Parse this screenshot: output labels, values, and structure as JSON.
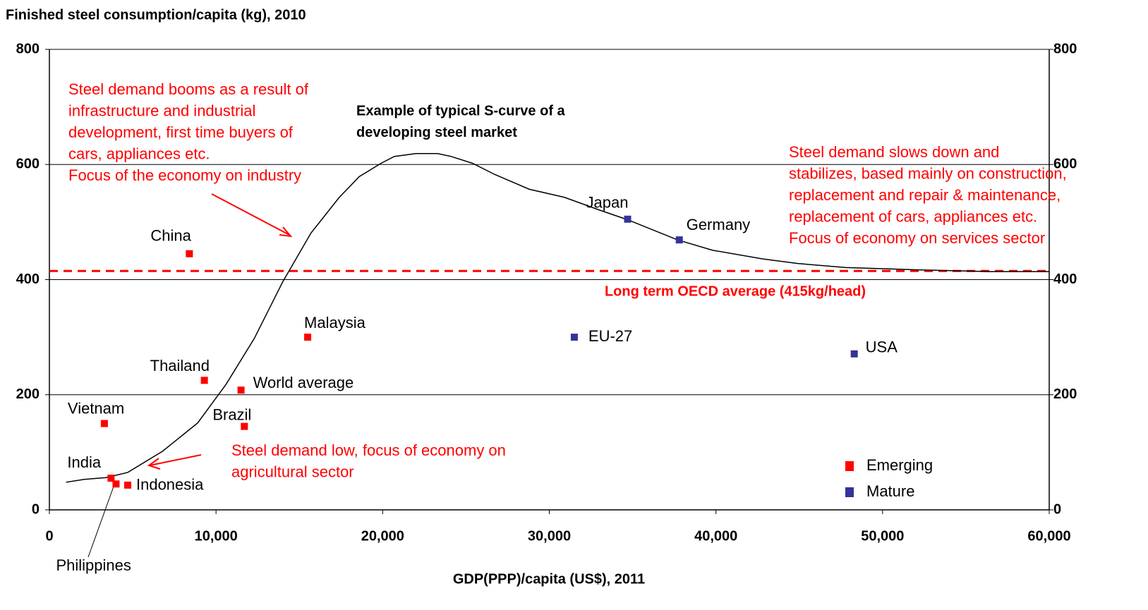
{
  "chart_data": {
    "type": "scatter",
    "title": "Finished steel consumption/capita (kg), 2010",
    "x_label": "GDP(PPP)/capita (US$), 2011",
    "xlim": [
      0,
      60000
    ],
    "xticks": [
      0,
      {
        "value": 10000,
        "label": "10,000"
      },
      {
        "value": 20000,
        "label": "20,000"
      },
      {
        "value": 30000,
        "label": "30,000"
      },
      {
        "value": 40000,
        "label": "40,000"
      },
      {
        "value": 50000,
        "label": "50,000"
      },
      {
        "value": 60000,
        "label": "60,000"
      }
    ],
    "ylim": [
      0,
      800
    ],
    "yticks": [
      0,
      200,
      400,
      600,
      800
    ],
    "y2lim": [
      0,
      800
    ],
    "y2ticks": [
      0,
      200,
      400,
      600,
      800
    ],
    "grid": true,
    "legend": "lower right",
    "series": [
      {
        "name": "Emerging",
        "color": "#ff0000",
        "labels": [
          "China",
          "Thailand",
          "World average",
          "Malaysia",
          "Vietnam",
          "Brazil",
          "India",
          "Philippines",
          "Indonesia"
        ],
        "x": [
          8400,
          9300,
          11500,
          15500,
          3300,
          11700,
          3700,
          4000,
          4700
        ],
        "values": [
          445,
          225,
          208,
          300,
          150,
          145,
          55,
          45,
          43
        ]
      },
      {
        "name": "Mature",
        "color": "#333399",
        "labels": [
          "Japan",
          "Germany",
          "EU-27",
          "USA"
        ],
        "x": [
          34700,
          37800,
          31500,
          48300
        ],
        "values": [
          505,
          469,
          300,
          271
        ]
      }
    ],
    "curve": {
      "color": "#000000",
      "x": [
        1000,
        2100,
        3400,
        4700,
        6800,
        8900,
        10600,
        12300,
        14000,
        15700,
        17400,
        18600,
        19900,
        20700,
        22000,
        23300,
        24100,
        25400,
        26700,
        28800,
        30900,
        33000,
        34700,
        37700,
        39800,
        42800,
        44900,
        47800,
        52100,
        56300,
        60000
      ],
      "values": [
        48,
        53,
        56,
        65,
        102,
        151,
        218,
        298,
        396,
        481,
        543,
        579,
        602,
        614,
        619,
        619,
        614,
        602,
        583,
        557,
        543,
        521,
        504,
        469,
        451,
        436,
        428,
        421,
        417,
        414,
        414
      ]
    },
    "reference_line": {
      "value": 415,
      "color": "#ff0000",
      "label": "Long term OECD average (415kg/head)"
    },
    "annotations": [
      {
        "color": "#ff0000",
        "lines": [
          "Steel demand booms as a result of",
          "infrastructure and industrial",
          "development, first time buyers of",
          "cars, appliances etc.",
          "Focus of the economy on industry"
        ]
      },
      {
        "color": "#000000",
        "lines": [
          "Example of typical S-curve of a",
          "developing steel market"
        ]
      },
      {
        "color": "#ff0000",
        "lines": [
          "Steel demand slows down and",
          "stabilizes, based mainly on construction,",
          "replacement and repair & maintenance,",
          "replacement of cars, appliances etc.",
          "Focus of economy on services sector"
        ]
      },
      {
        "color": "#ff0000",
        "lines": [
          "Steel demand low, focus of economy on",
          "agricultural sector"
        ]
      }
    ]
  }
}
